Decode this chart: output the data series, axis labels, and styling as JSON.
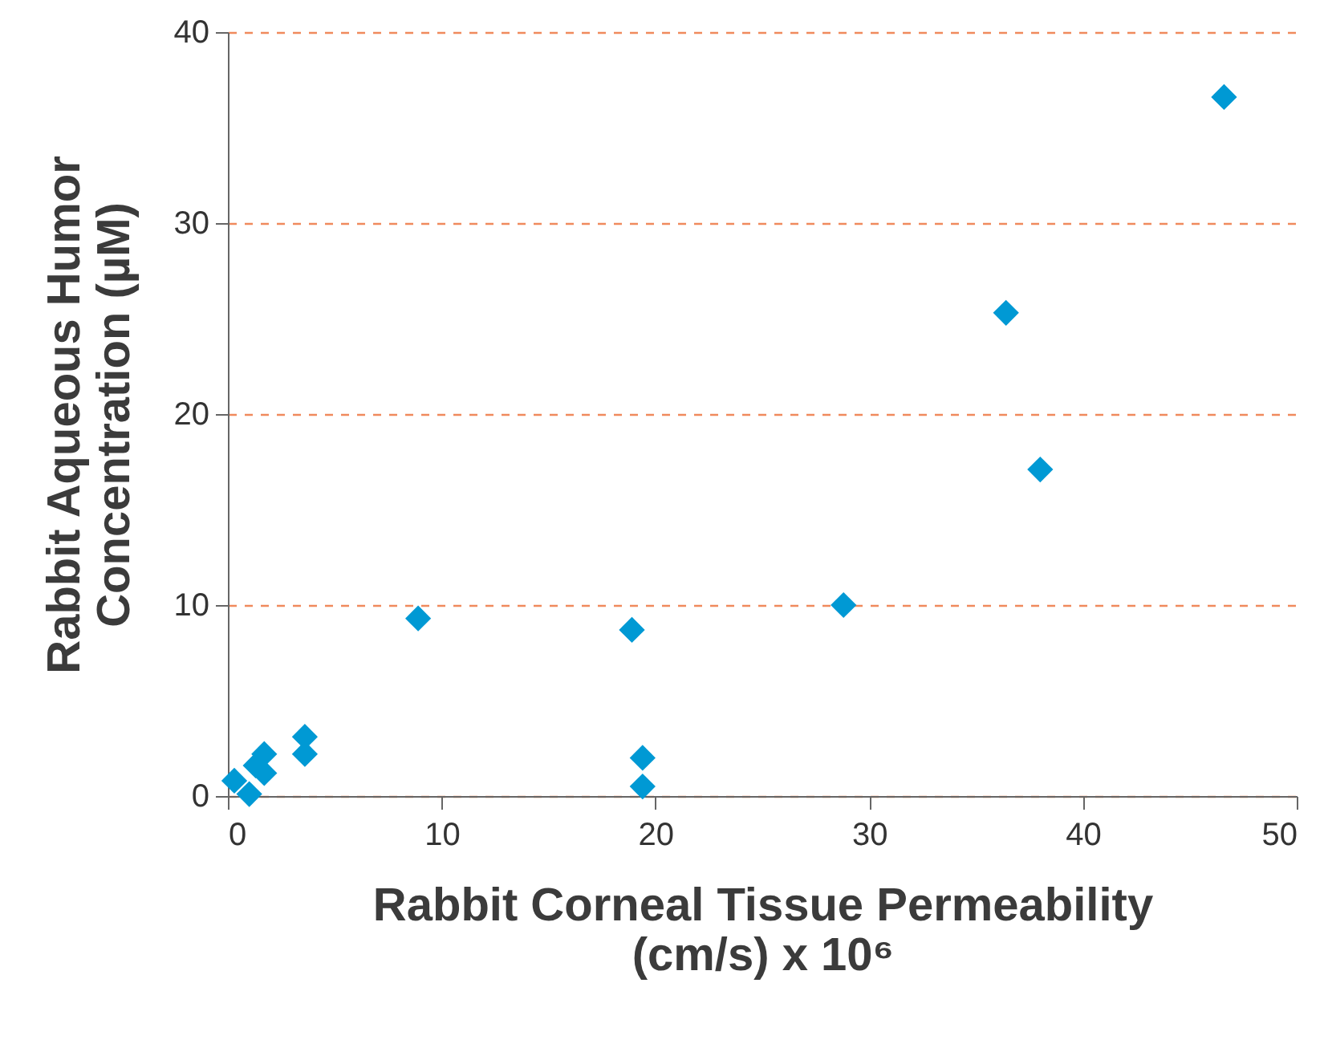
{
  "chart_data": {
    "type": "scatter",
    "xlabel": "Rabbit Corneal Tissue Permeability\n(cm/s) x 10⁶",
    "ylabel": "Rabbit Aqueous Humor\nConcentration (µM)",
    "x": [
      0.3,
      1.0,
      1.3,
      1.7,
      1.7,
      3.6,
      3.6,
      8.9,
      18.9,
      19.4,
      19.4,
      28.8,
      36.4,
      38.0,
      46.6
    ],
    "series": [
      {
        "color": "#0099d4",
        "values": [
          0.8,
          0.1,
          1.6,
          2.2,
          1.2,
          3.1,
          2.2,
          9.3,
          8.7,
          2.0,
          0.5,
          10.0,
          25.3,
          17.1,
          36.6
        ]
      }
    ],
    "xlim": [
      0,
      50
    ],
    "ylim": [
      0,
      40
    ],
    "xticks": [
      0,
      10,
      20,
      30,
      40,
      50
    ],
    "yticks": [
      0,
      10,
      20,
      30,
      40
    ],
    "grid": "y",
    "marker": "diamond",
    "legend": false
  }
}
